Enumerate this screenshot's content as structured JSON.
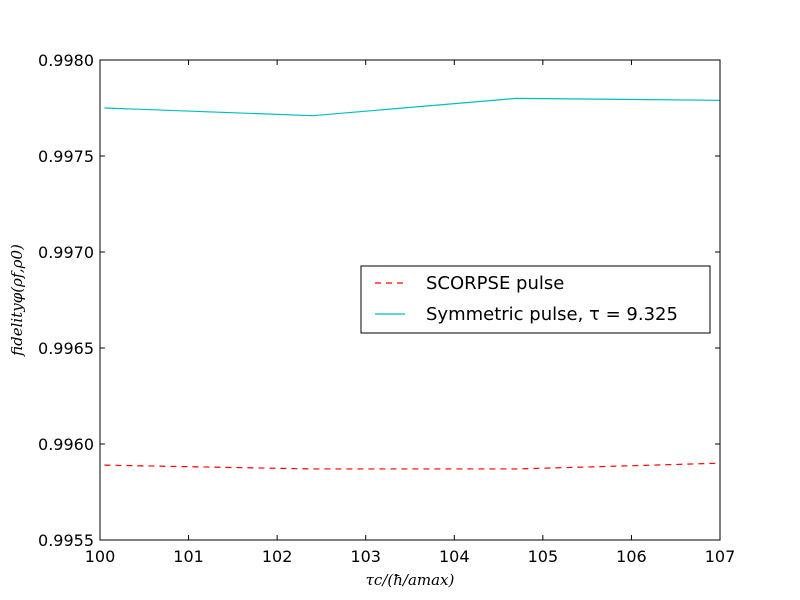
{
  "chart_data": {
    "type": "line",
    "title": "",
    "xlabel": "τc/(ħ/amax)",
    "ylabel": "fidelityφ(ρf,ρ0)",
    "xlim": [
      100,
      107
    ],
    "ylim": [
      0.9955,
      0.998
    ],
    "x_ticks": [
      100,
      101,
      102,
      103,
      104,
      105,
      106,
      107
    ],
    "x_tick_labels": [
      "100",
      "101",
      "102",
      "103",
      "104",
      "105",
      "106",
      "107"
    ],
    "y_ticks": [
      0.9955,
      0.996,
      0.9965,
      0.997,
      0.9975,
      0.998
    ],
    "y_tick_labels": [
      "0.9955",
      "0.9960",
      "0.9965",
      "0.9970",
      "0.9975",
      "0.9980"
    ],
    "grid": false,
    "legend_position": "center-right",
    "series": [
      {
        "name": "SCORPSE pulse",
        "color": "#ff0000",
        "style": "dashed",
        "x": [
          100.05,
          102.4,
          104.7,
          107.0
        ],
        "y": [
          0.99589,
          0.99587,
          0.99587,
          0.9959
        ]
      },
      {
        "name": "Symmetric pulse, τ = 9.325",
        "color": "#00bfbf",
        "style": "solid",
        "x": [
          100.05,
          102.4,
          104.7,
          107.0
        ],
        "y": [
          0.99775,
          0.99771,
          0.9978,
          0.99779
        ]
      }
    ]
  }
}
